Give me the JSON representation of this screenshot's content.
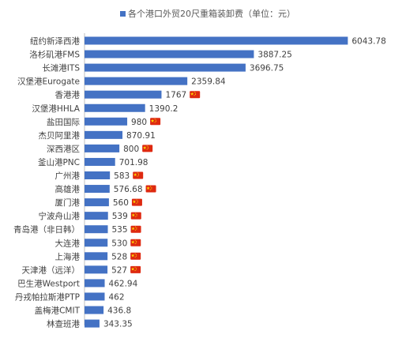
{
  "chart_data": {
    "type": "bar",
    "orientation": "horizontal",
    "title": "",
    "legend": {
      "label": "各个港口外贸20尺重箱装卸费（单位：元）",
      "position": "top"
    },
    "color": "#4472c4",
    "xlim": [
      0,
      6400
    ],
    "grid": false,
    "categories": [
      "纽约新泽西港",
      "洛杉矶港FMS",
      "长滩港ITS",
      "汉堡港Eurogate",
      "香港港",
      "汉堡港HHLA",
      "盐田国际",
      "杰贝阿里港",
      "深西港区",
      "釜山港PNC",
      "广州港",
      "高雄港",
      "厦门港",
      "宁波舟山港",
      "青岛港（非日韩）",
      "大连港",
      "上海港",
      "天津港（远洋）",
      "巴生港Westport",
      "丹戎帕拉斯港PTP",
      "盖梅港CMIT",
      "林查班港"
    ],
    "values": [
      6043.78,
      3887.25,
      3696.75,
      2359.84,
      1767,
      1390.2,
      980,
      870.91,
      800,
      701.98,
      583,
      576.68,
      560,
      539,
      535,
      530,
      528,
      527,
      462.94,
      462,
      436.8,
      343.35
    ],
    "value_labels": [
      "6043.78",
      "3887.25",
      "3696.75",
      "2359.84",
      "1767",
      "1390.2",
      "980",
      "870.91",
      "800",
      "701.98",
      "583",
      "576.68",
      "560",
      "539",
      "535",
      "530",
      "528",
      "527",
      "462.94",
      "462",
      "436.8",
      "343.35"
    ],
    "flag_marker": [
      false,
      false,
      false,
      false,
      true,
      false,
      true,
      false,
      true,
      false,
      true,
      true,
      true,
      true,
      true,
      true,
      true,
      true,
      false,
      false,
      false,
      false
    ],
    "flag_icon": "china-flag-icon",
    "flag_color": "#de2910"
  }
}
